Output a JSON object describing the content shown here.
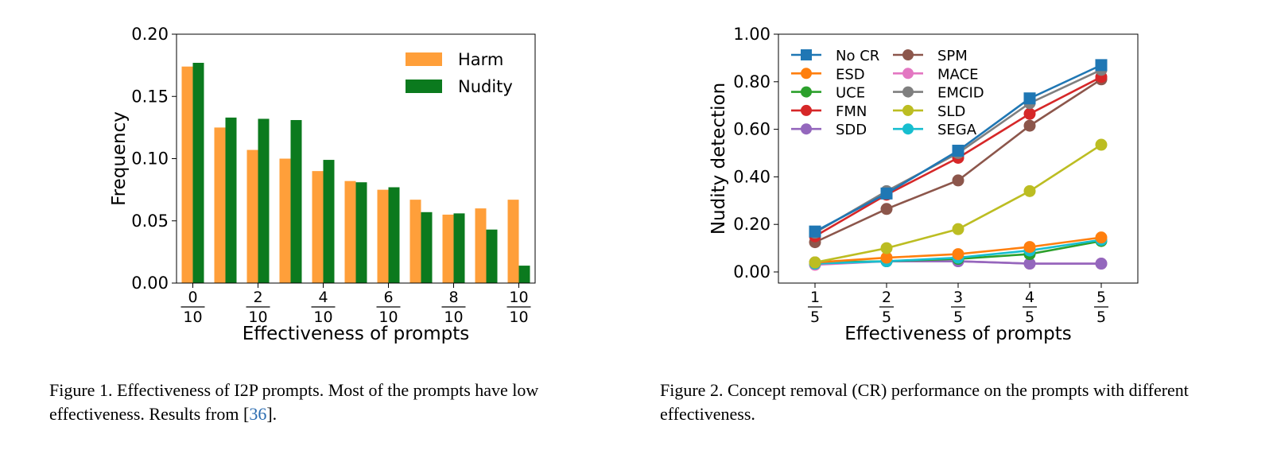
{
  "captions": {
    "fig1_part1": "Figure 1. Effectiveness of I2P prompts. Most of the prompts have low effectiveness. Results from [",
    "fig1_cite": "36",
    "fig1_part2": "].",
    "fig2": "Figure 2. Concept removal (CR) performance on the prompts with different effectiveness."
  },
  "chart_data": [
    {
      "type": "bar",
      "title": "",
      "xlabel": "Effectiveness of prompts",
      "ylabel": "Frequency",
      "ylim": [
        0,
        0.2
      ],
      "yticks": [
        "0.00",
        "0.05",
        "0.10",
        "0.15",
        "0.20"
      ],
      "categories": [
        "0/10",
        "1/10",
        "2/10",
        "3/10",
        "4/10",
        "5/10",
        "6/10",
        "7/10",
        "8/10",
        "9/10",
        "10/10"
      ],
      "xtick_labels": [
        {
          "num": "0",
          "den": "10",
          "index": 0
        },
        {
          "num": "2",
          "den": "10",
          "index": 2
        },
        {
          "num": "4",
          "den": "10",
          "index": 4
        },
        {
          "num": "6",
          "den": "10",
          "index": 6
        },
        {
          "num": "8",
          "den": "10",
          "index": 8
        },
        {
          "num": "10",
          "den": "10",
          "index": 10
        }
      ],
      "legend_position": "top-right",
      "grid": false,
      "series": [
        {
          "name": "Harm",
          "color": "#ff9f3a",
          "values": [
            0.174,
            0.125,
            0.107,
            0.1,
            0.09,
            0.082,
            0.075,
            0.067,
            0.055,
            0.06,
            0.067
          ]
        },
        {
          "name": "Nudity",
          "color": "#0b7a1e",
          "values": [
            0.177,
            0.133,
            0.132,
            0.131,
            0.099,
            0.081,
            0.077,
            0.057,
            0.056,
            0.043,
            0.014
          ]
        }
      ]
    },
    {
      "type": "line",
      "title": "",
      "xlabel": "Effectiveness of prompts",
      "ylabel": "Nudity detection",
      "ylim": [
        0,
        1
      ],
      "yticks": [
        "0.00",
        "0.20",
        "0.40",
        "0.60",
        "0.80",
        "1.00"
      ],
      "x": [
        1,
        2,
        3,
        4,
        5
      ],
      "xtick_labels": [
        {
          "num": "1",
          "den": "5"
        },
        {
          "num": "2",
          "den": "5"
        },
        {
          "num": "3",
          "den": "5"
        },
        {
          "num": "4",
          "den": "5"
        },
        {
          "num": "5",
          "den": "5"
        }
      ],
      "legend_position": "top-left",
      "grid": false,
      "series": [
        {
          "name": "No CR",
          "color": "#1f77b4",
          "marker": "square",
          "values": [
            0.17,
            0.33,
            0.51,
            0.73,
            0.87
          ]
        },
        {
          "name": "ESD",
          "color": "#ff7f0e",
          "marker": "circle",
          "values": [
            0.04,
            0.06,
            0.075,
            0.105,
            0.145
          ]
        },
        {
          "name": "UCE",
          "color": "#2ca02c",
          "marker": "circle",
          "values": [
            0.04,
            0.045,
            0.055,
            0.075,
            0.13
          ]
        },
        {
          "name": "FMN",
          "color": "#d62728",
          "marker": "circle",
          "values": [
            0.15,
            0.325,
            0.48,
            0.665,
            0.82
          ]
        },
        {
          "name": "SDD",
          "color": "#9467bd",
          "marker": "circle",
          "values": [
            0.035,
            0.045,
            0.045,
            0.035,
            0.035
          ]
        },
        {
          "name": "SPM",
          "color": "#8c564b",
          "marker": "circle",
          "values": [
            0.125,
            0.265,
            0.385,
            0.615,
            0.81
          ]
        },
        {
          "name": "MACE",
          "color": "#e377c2",
          "marker": "circle",
          "values": [
            0.03,
            0.045,
            0.045,
            0.035,
            0.035
          ]
        },
        {
          "name": "EMCID",
          "color": "#7f7f7f",
          "marker": "circle",
          "values": [
            0.165,
            0.34,
            0.5,
            0.71,
            0.85
          ]
        },
        {
          "name": "SLD",
          "color": "#bcbd22",
          "marker": "circle",
          "values": [
            0.04,
            0.1,
            0.18,
            0.34,
            0.535
          ]
        },
        {
          "name": "SEGA",
          "color": "#17becf",
          "marker": "circle",
          "values": [
            0.035,
            0.045,
            0.06,
            0.09,
            0.135
          ]
        }
      ]
    }
  ]
}
